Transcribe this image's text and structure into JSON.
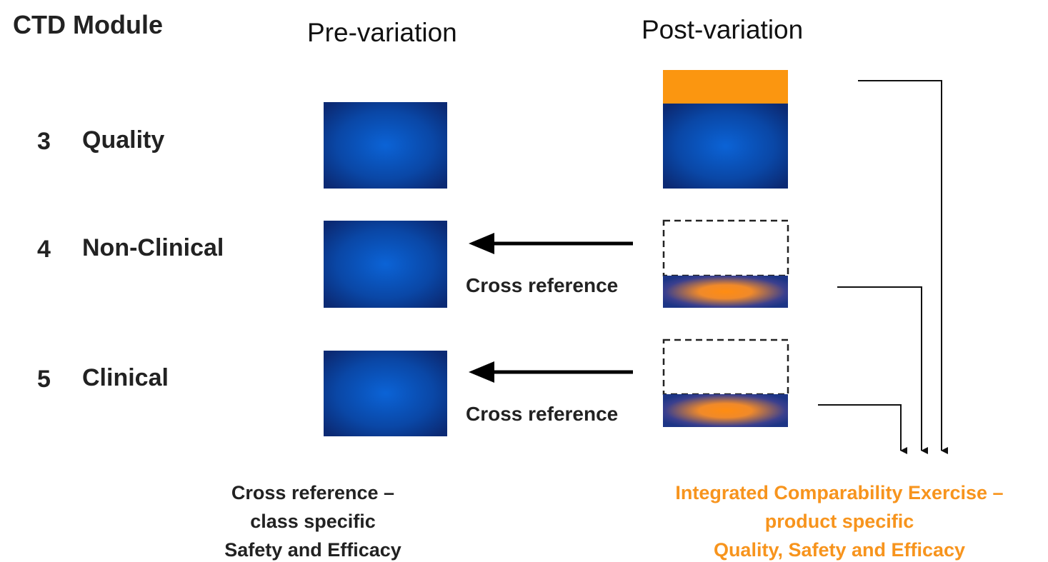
{
  "header": {
    "title": "CTD Module"
  },
  "columns": {
    "pre": "Pre-variation",
    "post": "Post-variation"
  },
  "modules": [
    {
      "number": "3",
      "label": "Quality"
    },
    {
      "number": "4",
      "label": "Non-Clinical"
    },
    {
      "number": "5",
      "label": "Clinical"
    }
  ],
  "cross_reference_labels": [
    "Cross reference",
    "Cross reference"
  ],
  "captions": {
    "pre": [
      "Cross reference –",
      "class specific",
      "Safety and Efficacy"
    ],
    "post": [
      "Integrated Comparability Exercise –",
      "product specific",
      "Quality, Safety and Efficacy"
    ]
  }
}
